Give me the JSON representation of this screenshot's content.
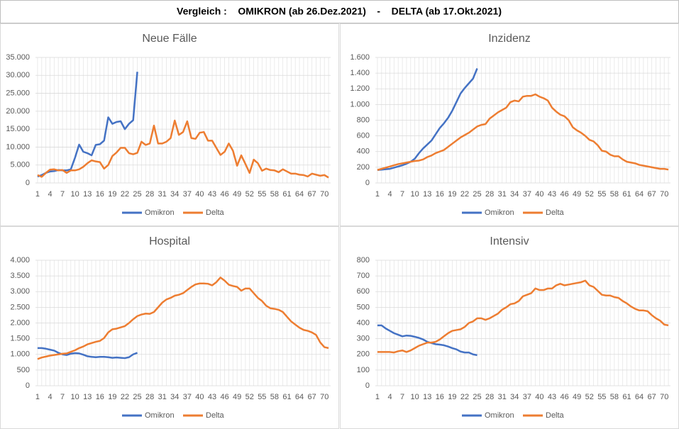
{
  "title": "Vergleich :    OMIKRON (ab 26.Dez.2021)    -    DELTA (ab 17.Okt.2021)",
  "chart_data": [
    {
      "type": "line",
      "title": "Neue Fälle",
      "x": [
        1,
        2,
        3,
        4,
        5,
        6,
        7,
        8,
        9,
        10,
        11,
        12,
        13,
        14,
        15,
        16,
        17,
        18,
        19,
        20,
        21,
        22,
        23,
        24,
        25,
        26,
        27,
        28,
        29,
        30,
        31,
        32,
        33,
        34,
        35,
        36,
        37,
        38,
        39,
        40,
        41,
        42,
        43,
        44,
        45,
        46,
        47,
        48,
        49,
        50,
        51,
        52,
        53,
        54,
        55,
        56,
        57,
        58,
        59,
        60,
        61,
        62,
        63,
        64,
        65,
        66,
        67,
        68,
        69,
        70,
        71
      ],
      "xlim": [
        0.5,
        71.5
      ],
      "xticks": [
        1,
        4,
        7,
        10,
        13,
        16,
        19,
        22,
        25,
        28,
        31,
        34,
        37,
        40,
        43,
        46,
        49,
        52,
        55,
        58,
        61,
        64,
        67,
        70
      ],
      "ylim": [
        0,
        35000
      ],
      "yticks": [
        0,
        {
          "value": 5000,
          "label": "5.000"
        },
        {
          "value": 10000,
          "label": "10.000"
        },
        {
          "value": 15000,
          "label": "15.000"
        },
        {
          "value": 20000,
          "label": "20.000"
        },
        {
          "value": 25000,
          "label": "25.000"
        },
        {
          "value": 30000,
          "label": "30.000"
        },
        {
          "value": 35000,
          "label": "35.000"
        }
      ],
      "grid": true,
      "series": [
        {
          "name": "Omikron",
          "color": "#4472c4",
          "values": [
            1800,
            2200,
            2800,
            3200,
            3300,
            3600,
            3500,
            3500,
            3800,
            7000,
            10700,
            8700,
            8300,
            7700,
            10600,
            10800,
            11800,
            18300,
            16500,
            17000,
            17200,
            15000,
            16500,
            17500,
            31000,
            null,
            null,
            null,
            null,
            null,
            null,
            null,
            null,
            null,
            null,
            null,
            null,
            null,
            null,
            null,
            null,
            null,
            null,
            null,
            null,
            null,
            null,
            null,
            null,
            null,
            null,
            null,
            null,
            null,
            null,
            null,
            null,
            null,
            null,
            null,
            null,
            null,
            null,
            null,
            null,
            null,
            null,
            null,
            null,
            null,
            null
          ]
        },
        {
          "name": "Delta",
          "color": "#ed7d31",
          "values": [
            2200,
            1700,
            2800,
            3700,
            3800,
            3500,
            3600,
            2800,
            3500,
            3500,
            3800,
            4500,
            5500,
            6300,
            6000,
            5800,
            4000,
            5000,
            7500,
            8500,
            9800,
            9800,
            8300,
            8000,
            8400,
            11500,
            10600,
            11000,
            16000,
            11000,
            11000,
            11500,
            12500,
            17400,
            13400,
            14200,
            17200,
            12500,
            12300,
            14000,
            14200,
            11800,
            11800,
            9800,
            7800,
            8700,
            11000,
            9000,
            4800,
            7700,
            5300,
            2800,
            6500,
            5500,
            3400,
            4000,
            3600,
            3500,
            3000,
            3800,
            3200,
            2600,
            2600,
            2300,
            2200,
            1800,
            2600,
            2300,
            2000,
            2200,
            1500
          ]
        }
      ]
    },
    {
      "type": "line",
      "title": "Inzidenz",
      "x": [
        1,
        2,
        3,
        4,
        5,
        6,
        7,
        8,
        9,
        10,
        11,
        12,
        13,
        14,
        15,
        16,
        17,
        18,
        19,
        20,
        21,
        22,
        23,
        24,
        25,
        26,
        27,
        28,
        29,
        30,
        31,
        32,
        33,
        34,
        35,
        36,
        37,
        38,
        39,
        40,
        41,
        42,
        43,
        44,
        45,
        46,
        47,
        48,
        49,
        50,
        51,
        52,
        53,
        54,
        55,
        56,
        57,
        58,
        59,
        60,
        61,
        62,
        63,
        64,
        65,
        66,
        67,
        68,
        69,
        70,
        71
      ],
      "xlim": [
        0.5,
        71.5
      ],
      "xticks": [
        1,
        4,
        7,
        10,
        13,
        16,
        19,
        22,
        25,
        28,
        31,
        34,
        37,
        40,
        43,
        46,
        49,
        52,
        55,
        58,
        61,
        64,
        67,
        70
      ],
      "ylim": [
        0,
        1600
      ],
      "yticks": [
        0,
        200,
        400,
        600,
        800,
        {
          "value": 1000,
          "label": "1.000"
        },
        {
          "value": 1200,
          "label": "1.200"
        },
        {
          "value": 1400,
          "label": "1.400"
        },
        {
          "value": 1600,
          "label": "1.600"
        }
      ],
      "grid": true,
      "series": [
        {
          "name": "Omikron",
          "color": "#4472c4",
          "values": [
            165,
            170,
            175,
            180,
            195,
            210,
            225,
            245,
            270,
            310,
            380,
            440,
            490,
            540,
            620,
            700,
            760,
            830,
            920,
            1030,
            1140,
            1210,
            1270,
            1330,
            1460,
            null,
            null,
            null,
            null,
            null,
            null,
            null,
            null,
            null,
            null,
            null,
            null,
            null,
            null,
            null,
            null,
            null,
            null,
            null,
            null,
            null,
            null,
            null,
            null,
            null,
            null,
            null,
            null,
            null,
            null,
            null,
            null,
            null,
            null,
            null,
            null,
            null,
            null,
            null,
            null,
            null,
            null,
            null,
            null,
            null,
            null
          ]
        },
        {
          "name": "Delta",
          "color": "#ed7d31",
          "values": [
            165,
            180,
            195,
            210,
            225,
            240,
            250,
            260,
            270,
            280,
            285,
            300,
            330,
            350,
            380,
            400,
            420,
            460,
            500,
            540,
            580,
            610,
            640,
            680,
            720,
            740,
            750,
            820,
            860,
            900,
            930,
            960,
            1030,
            1050,
            1040,
            1100,
            1110,
            1110,
            1130,
            1100,
            1080,
            1050,
            960,
            910,
            870,
            850,
            800,
            710,
            670,
            640,
            600,
            550,
            530,
            480,
            410,
            400,
            360,
            340,
            340,
            300,
            270,
            260,
            250,
            230,
            220,
            210,
            200,
            190,
            180,
            180,
            170
          ]
        }
      ]
    },
    {
      "type": "line",
      "title": "Hospital",
      "x": [
        1,
        2,
        3,
        4,
        5,
        6,
        7,
        8,
        9,
        10,
        11,
        12,
        13,
        14,
        15,
        16,
        17,
        18,
        19,
        20,
        21,
        22,
        23,
        24,
        25,
        26,
        27,
        28,
        29,
        30,
        31,
        32,
        33,
        34,
        35,
        36,
        37,
        38,
        39,
        40,
        41,
        42,
        43,
        44,
        45,
        46,
        47,
        48,
        49,
        50,
        51,
        52,
        53,
        54,
        55,
        56,
        57,
        58,
        59,
        60,
        61,
        62,
        63,
        64,
        65,
        66,
        67,
        68,
        69,
        70,
        71
      ],
      "xlim": [
        0.5,
        71.5
      ],
      "xticks": [
        1,
        4,
        7,
        10,
        13,
        16,
        19,
        22,
        25,
        28,
        31,
        34,
        37,
        40,
        43,
        46,
        49,
        52,
        55,
        58,
        61,
        64,
        67,
        70
      ],
      "ylim": [
        0,
        4000
      ],
      "yticks": [
        0,
        500,
        {
          "value": 1000,
          "label": "1.000"
        },
        {
          "value": 1500,
          "label": "1.500"
        },
        {
          "value": 2000,
          "label": "2.000"
        },
        {
          "value": 2500,
          "label": "2.500"
        },
        {
          "value": 3000,
          "label": "3.000"
        },
        {
          "value": 3500,
          "label": "3.500"
        },
        {
          "value": 4000,
          "label": "4.000"
        }
      ],
      "grid": true,
      "series": [
        {
          "name": "Omikron",
          "color": "#4472c4",
          "values": [
            1200,
            1200,
            1180,
            1150,
            1120,
            1050,
            1000,
            980,
            1020,
            1040,
            1030,
            990,
            940,
            920,
            910,
            920,
            920,
            910,
            890,
            900,
            890,
            880,
            910,
            1000,
            1050,
            null,
            null,
            null,
            null,
            null,
            null,
            null,
            null,
            null,
            null,
            null,
            null,
            null,
            null,
            null,
            null,
            null,
            null,
            null,
            null,
            null,
            null,
            null,
            null,
            null,
            null,
            null,
            null,
            null,
            null,
            null,
            null,
            null,
            null,
            null,
            null,
            null,
            null,
            null,
            null,
            null,
            null,
            null,
            null,
            null,
            null
          ]
        },
        {
          "name": "Delta",
          "color": "#ed7d31",
          "values": [
            850,
            900,
            930,
            960,
            980,
            1000,
            1020,
            1030,
            1080,
            1130,
            1200,
            1250,
            1320,
            1360,
            1400,
            1430,
            1520,
            1700,
            1800,
            1820,
            1860,
            1900,
            2000,
            2120,
            2220,
            2270,
            2300,
            2290,
            2350,
            2500,
            2650,
            2750,
            2800,
            2870,
            2900,
            2950,
            3050,
            3150,
            3230,
            3260,
            3260,
            3250,
            3200,
            3300,
            3450,
            3350,
            3220,
            3180,
            3150,
            3030,
            3100,
            3100,
            2950,
            2800,
            2700,
            2550,
            2470,
            2450,
            2420,
            2350,
            2200,
            2050,
            1950,
            1850,
            1780,
            1750,
            1700,
            1620,
            1380,
            1230,
            1200
          ]
        }
      ]
    },
    {
      "type": "line",
      "title": "Intensiv",
      "x": [
        1,
        2,
        3,
        4,
        5,
        6,
        7,
        8,
        9,
        10,
        11,
        12,
        13,
        14,
        15,
        16,
        17,
        18,
        19,
        20,
        21,
        22,
        23,
        24,
        25,
        26,
        27,
        28,
        29,
        30,
        31,
        32,
        33,
        34,
        35,
        36,
        37,
        38,
        39,
        40,
        41,
        42,
        43,
        44,
        45,
        46,
        47,
        48,
        49,
        50,
        51,
        52,
        53,
        54,
        55,
        56,
        57,
        58,
        59,
        60,
        61,
        62,
        63,
        64,
        65,
        66,
        67,
        68,
        69,
        70,
        71
      ],
      "xlim": [
        0.5,
        71.5
      ],
      "xticks": [
        1,
        4,
        7,
        10,
        13,
        16,
        19,
        22,
        25,
        28,
        31,
        34,
        37,
        40,
        43,
        46,
        49,
        52,
        55,
        58,
        61,
        64,
        67,
        70
      ],
      "ylim": [
        0,
        800
      ],
      "yticks": [
        0,
        100,
        200,
        300,
        400,
        500,
        600,
        700,
        800
      ],
      "grid": true,
      "series": [
        {
          "name": "Omikron",
          "color": "#4472c4",
          "values": [
            385,
            385,
            365,
            350,
            335,
            325,
            315,
            320,
            318,
            312,
            305,
            295,
            280,
            272,
            265,
            262,
            258,
            250,
            240,
            232,
            218,
            212,
            212,
            200,
            195,
            null,
            null,
            null,
            null,
            null,
            null,
            null,
            null,
            null,
            null,
            null,
            null,
            null,
            null,
            null,
            null,
            null,
            null,
            null,
            null,
            null,
            null,
            null,
            null,
            null,
            null,
            null,
            null,
            null,
            null,
            null,
            null,
            null,
            null,
            null,
            null,
            null,
            null,
            null,
            null,
            null,
            null,
            null,
            null,
            null,
            null
          ]
        },
        {
          "name": "Delta",
          "color": "#ed7d31",
          "values": [
            215,
            215,
            215,
            215,
            212,
            220,
            225,
            215,
            225,
            240,
            255,
            265,
            275,
            275,
            280,
            295,
            315,
            335,
            350,
            355,
            360,
            375,
            400,
            410,
            430,
            430,
            420,
            430,
            445,
            460,
            485,
            500,
            520,
            525,
            540,
            570,
            580,
            590,
            620,
            610,
            610,
            620,
            620,
            640,
            650,
            640,
            645,
            650,
            655,
            660,
            670,
            640,
            630,
            605,
            580,
            575,
            575,
            565,
            560,
            540,
            525,
            505,
            490,
            480,
            480,
            475,
            450,
            430,
            415,
            390,
            385
          ]
        }
      ]
    }
  ]
}
